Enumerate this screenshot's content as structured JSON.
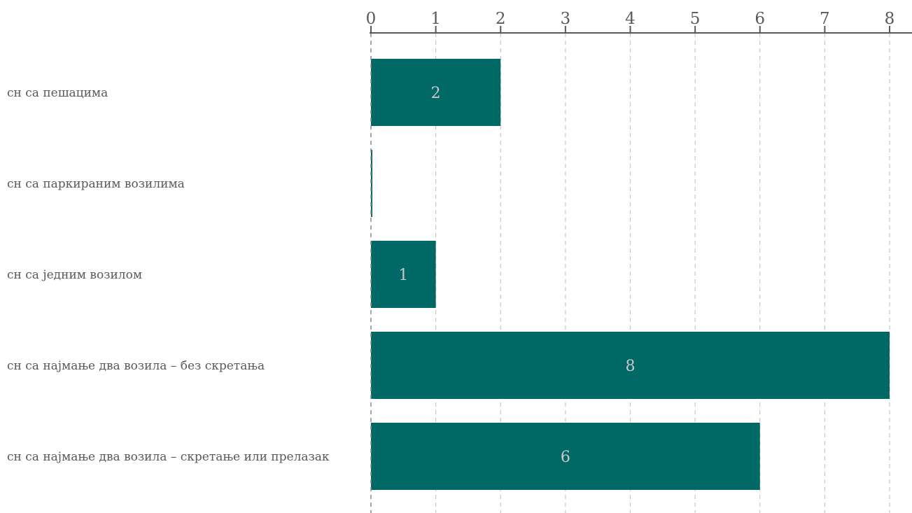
{
  "chart_data": {
    "type": "bar",
    "orientation": "horizontal",
    "categories": [
      "сн са пешацима",
      "сн са паркираним возилима",
      "сн са једним возилом",
      "сн са најмање два возила – без скретања",
      "сн са најмање два возила – скретање или прелазак"
    ],
    "values": [
      2,
      0,
      1,
      8,
      6
    ],
    "data_labels": [
      "2",
      "",
      "1",
      "8",
      "6"
    ],
    "xlim": [
      0,
      8
    ],
    "ticks": [
      "0",
      "1",
      "2",
      "3",
      "4",
      "5",
      "6",
      "7",
      "8"
    ],
    "x_axis_position": "top",
    "grid": true,
    "bar_color": "#006865",
    "title": "",
    "xlabel": "",
    "ylabel": ""
  }
}
